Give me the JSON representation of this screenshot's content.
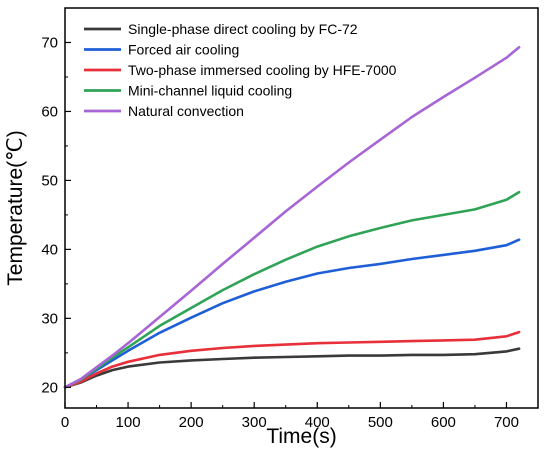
{
  "chart_data": {
    "type": "line",
    "title": "",
    "xlabel": "Time(s)",
    "ylabel": "Temperature(℃)",
    "xlim": [
      0,
      750
    ],
    "ylim": [
      17,
      75
    ],
    "xticks": [
      0,
      100,
      200,
      300,
      400,
      500,
      600,
      700
    ],
    "yticks": [
      20,
      30,
      40,
      50,
      60,
      70
    ],
    "grid": false,
    "legend_position": "top-left",
    "series": [
      {
        "name": "Single-phase direct cooling by FC-72",
        "color": "#3a3a3a",
        "x": [
          0,
          25,
          50,
          75,
          100,
          150,
          200,
          250,
          300,
          350,
          400,
          450,
          500,
          550,
          600,
          650,
          700,
          720
        ],
        "y": [
          20.0,
          20.7,
          21.7,
          22.5,
          23.0,
          23.6,
          23.9,
          24.1,
          24.3,
          24.4,
          24.5,
          24.6,
          24.6,
          24.7,
          24.7,
          24.8,
          25.2,
          25.6
        ]
      },
      {
        "name": "Forced air cooling",
        "color": "#1f5fd6",
        "x": [
          0,
          25,
          50,
          75,
          100,
          150,
          200,
          250,
          300,
          350,
          400,
          450,
          500,
          550,
          600,
          650,
          700,
          720
        ],
        "y": [
          20.0,
          21.0,
          22.5,
          23.9,
          25.3,
          27.9,
          30.1,
          32.2,
          33.9,
          35.3,
          36.5,
          37.3,
          37.9,
          38.6,
          39.2,
          39.8,
          40.6,
          41.4
        ]
      },
      {
        "name": "Two-phase immersed cooling by HFE-7000",
        "color": "#e8303a",
        "x": [
          0,
          25,
          50,
          75,
          100,
          150,
          200,
          250,
          300,
          350,
          400,
          450,
          500,
          550,
          600,
          650,
          700,
          720
        ],
        "y": [
          20.0,
          20.8,
          22.0,
          23.0,
          23.7,
          24.7,
          25.3,
          25.7,
          26.0,
          26.2,
          26.4,
          26.5,
          26.6,
          26.7,
          26.8,
          26.9,
          27.4,
          28.0
        ]
      },
      {
        "name": "Mini-channel liquid cooling",
        "color": "#2fa356",
        "x": [
          0,
          25,
          50,
          75,
          100,
          150,
          200,
          250,
          300,
          350,
          400,
          450,
          500,
          550,
          600,
          650,
          700,
          720
        ],
        "y": [
          20.0,
          21.1,
          22.7,
          24.3,
          25.8,
          28.9,
          31.5,
          34.1,
          36.4,
          38.5,
          40.4,
          41.9,
          43.1,
          44.2,
          45.0,
          45.8,
          47.2,
          48.3
        ]
      },
      {
        "name": "Natural convection",
        "color": "#a865d6",
        "x": [
          0,
          25,
          50,
          75,
          100,
          150,
          200,
          250,
          300,
          350,
          400,
          450,
          500,
          550,
          600,
          650,
          700,
          720
        ],
        "y": [
          20.0,
          21.2,
          22.9,
          24.6,
          26.4,
          30.2,
          34.0,
          37.9,
          41.7,
          45.5,
          49.1,
          52.6,
          55.9,
          59.2,
          62.1,
          64.9,
          67.8,
          69.3
        ]
      }
    ]
  }
}
